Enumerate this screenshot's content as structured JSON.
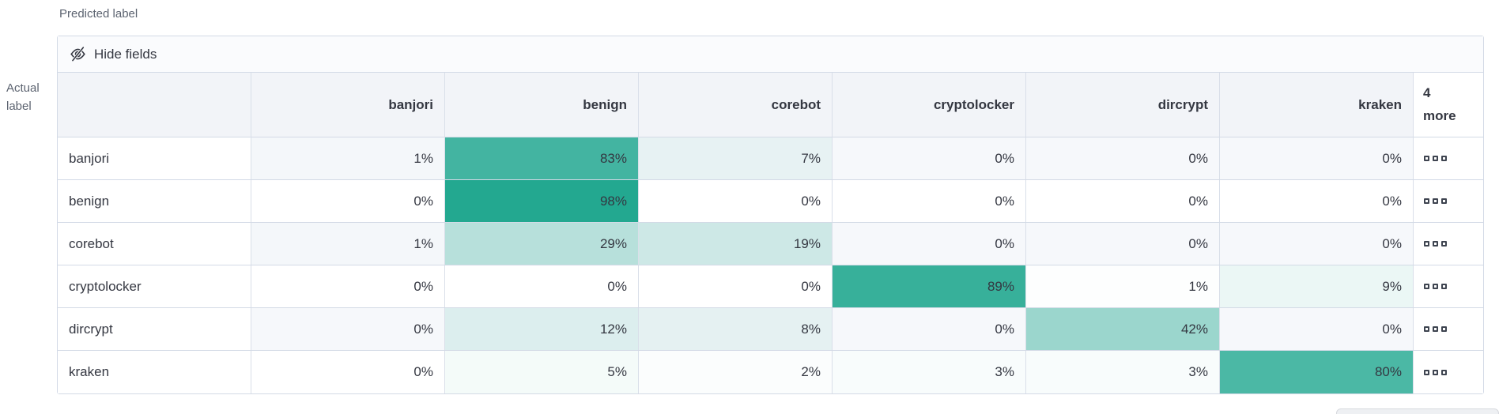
{
  "axes": {
    "predicted": "Predicted label",
    "actual_line1": "Actual",
    "actual_line2": "label"
  },
  "toolbar": {
    "hide_fields_label": "Hide fields"
  },
  "grid": {
    "value_suffix": "%",
    "columns": [
      "banjori",
      "benign",
      "corebot",
      "cryptolocker",
      "dircrypt",
      "kraken"
    ],
    "more_column_label": "4 more",
    "rows": [
      {
        "label": "banjori",
        "values": [
          1,
          83,
          7,
          0,
          0,
          0
        ]
      },
      {
        "label": "benign",
        "values": [
          0,
          98,
          0,
          0,
          0,
          0
        ]
      },
      {
        "label": "corebot",
        "values": [
          1,
          29,
          19,
          0,
          0,
          0
        ]
      },
      {
        "label": "cryptolocker",
        "values": [
          0,
          0,
          0,
          89,
          1,
          9
        ]
      },
      {
        "label": "dircrypt",
        "values": [
          0,
          12,
          8,
          0,
          42,
          0
        ]
      },
      {
        "label": "kraken",
        "values": [
          0,
          5,
          2,
          3,
          3,
          80
        ]
      }
    ]
  },
  "colors": {
    "heat_base_rgb": [
      30,
      166,
      142
    ],
    "stripe_row_bg": "#f6f8fb",
    "plain_row_bg": "#ffffff",
    "header_bg": "#f2f4f8",
    "toolbar_bg": "#fafbfd",
    "border": "#d3dae6",
    "text": "#343741",
    "subdued_text": "#5c6370"
  },
  "chart_data": {
    "type": "heatmap",
    "xlabel": "Predicted label",
    "ylabel": "Actual label",
    "x_categories": [
      "banjori",
      "benign",
      "corebot",
      "cryptolocker",
      "dircrypt",
      "kraken"
    ],
    "y_categories": [
      "banjori",
      "benign",
      "corebot",
      "cryptolocker",
      "dircrypt",
      "kraken"
    ],
    "values_percent": [
      [
        1,
        83,
        7,
        0,
        0,
        0
      ],
      [
        0,
        98,
        0,
        0,
        0,
        0
      ],
      [
        1,
        29,
        19,
        0,
        0,
        0
      ],
      [
        0,
        0,
        0,
        89,
        1,
        9
      ],
      [
        0,
        12,
        8,
        0,
        42,
        0
      ],
      [
        0,
        5,
        2,
        3,
        3,
        80
      ]
    ],
    "collapsed_columns_label": "4 more"
  }
}
